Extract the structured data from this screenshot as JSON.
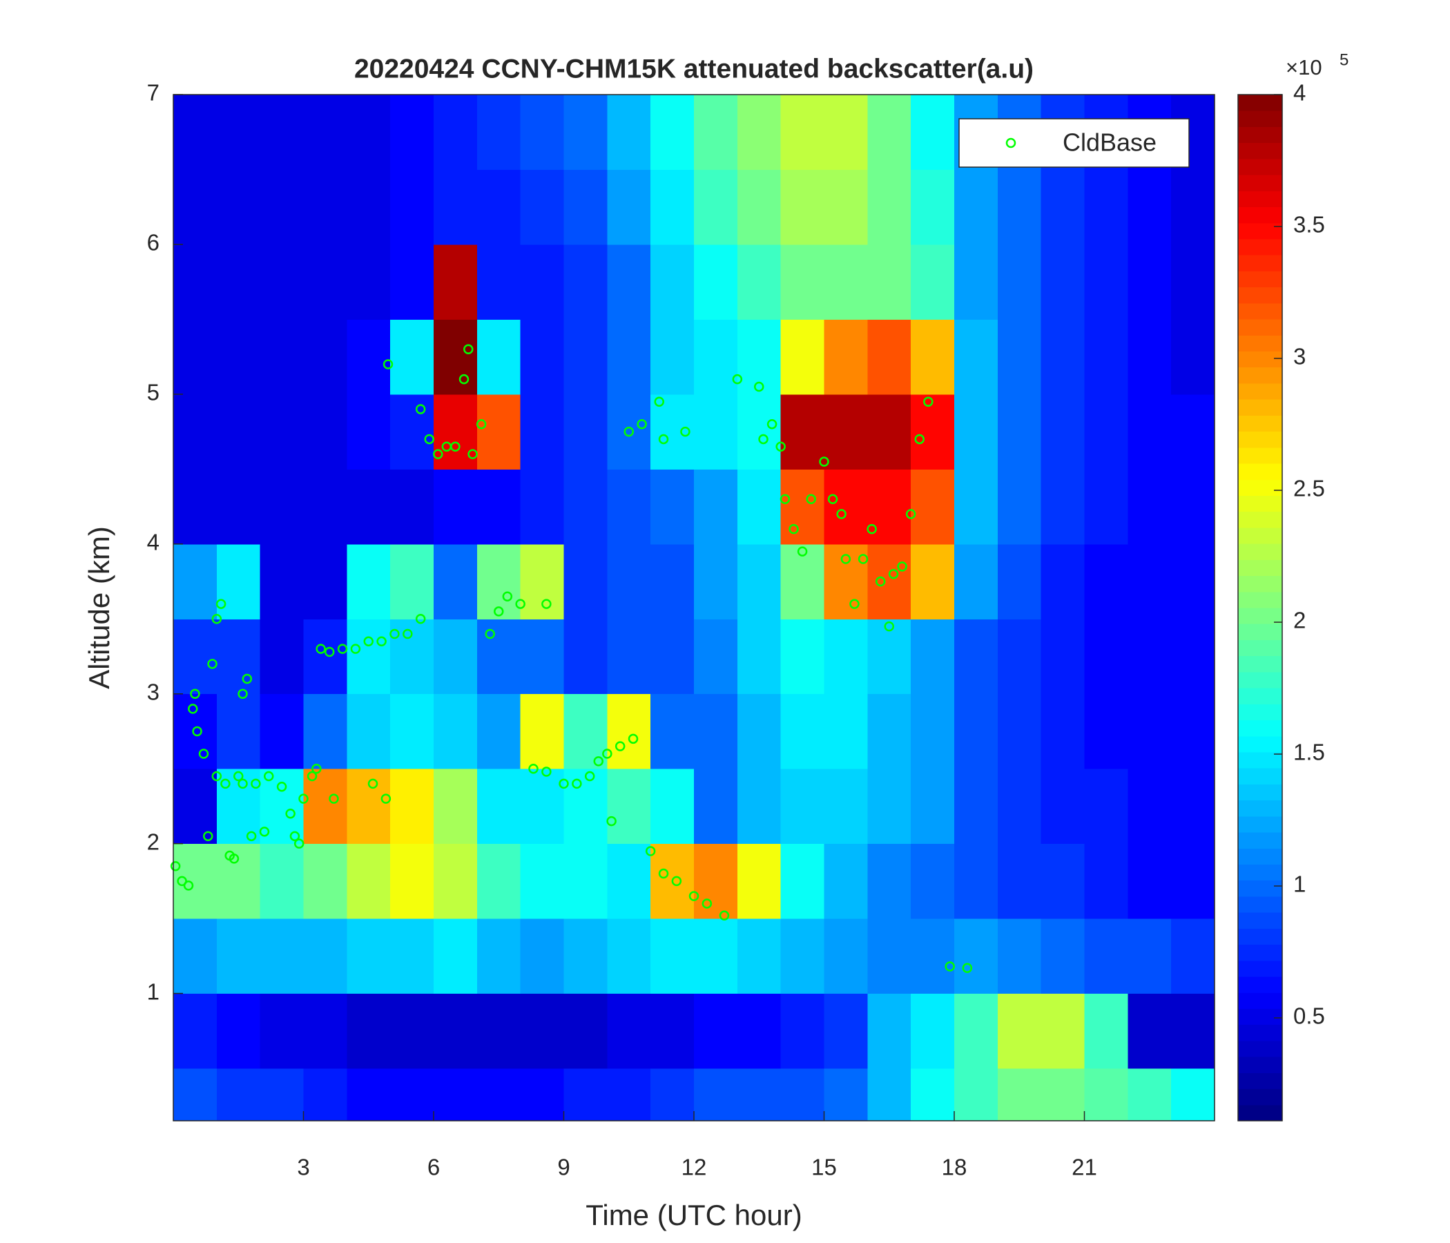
{
  "chart_data": {
    "type": "heatmap",
    "title": "20220424 CCNY-CHM15K attenuated backscatter(a.u)",
    "x_label": "Time (UTC hour)",
    "y_label": "Altitude (km)",
    "colormap": "jet",
    "colorbar_multiplier": "×10",
    "colorbar_exponent": 5,
    "xlim": [
      0,
      24
    ],
    "xticks": [
      3,
      6,
      9,
      12,
      15,
      18,
      21
    ],
    "ylim": [
      0.15,
      7
    ],
    "yticks": [
      1,
      2,
      3,
      4,
      5,
      6,
      7
    ],
    "clim": [
      0.11,
      4
    ],
    "cticks": [
      0.5,
      1,
      1.5,
      2,
      2.5,
      3,
      3.5,
      4
    ],
    "legend": "northeast",
    "x": [
      0,
      1,
      2,
      3,
      4,
      5,
      6,
      7,
      8,
      9,
      10,
      11,
      12,
      13,
      14,
      15,
      16,
      17,
      18,
      19,
      20,
      21,
      22,
      23,
      24
    ],
    "y": [
      0.15,
      0.5,
      1,
      1.5,
      2,
      2.5,
      3,
      3.5,
      4,
      4.5,
      5,
      5.5,
      6,
      6.5,
      7
    ],
    "z": [
      [
        0.9,
        0.8,
        0.8,
        0.7,
        0.6,
        0.6,
        0.6,
        0.6,
        0.6,
        0.7,
        0.7,
        0.8,
        0.9,
        0.9,
        0.9,
        1.0,
        1.3,
        1.6,
        1.8,
        2.0,
        2.0,
        1.9,
        1.8,
        1.6
      ],
      [
        0.7,
        0.6,
        0.5,
        0.5,
        0.4,
        0.4,
        0.4,
        0.4,
        0.4,
        0.4,
        0.5,
        0.5,
        0.6,
        0.6,
        0.7,
        0.8,
        1.3,
        1.5,
        1.8,
        2.3,
        2.3,
        1.8,
        0.4,
        0.4
      ],
      [
        1.2,
        1.3,
        1.3,
        1.3,
        1.4,
        1.4,
        1.5,
        1.3,
        1.2,
        1.3,
        1.4,
        1.5,
        1.5,
        1.4,
        1.3,
        1.2,
        1.1,
        1.1,
        1.2,
        1.1,
        1.0,
        0.9,
        0.9,
        0.8
      ],
      [
        2.0,
        2.0,
        1.8,
        2.0,
        2.3,
        2.5,
        2.3,
        1.8,
        1.6,
        1.6,
        1.5,
        2.8,
        3.0,
        2.5,
        1.6,
        1.3,
        1.1,
        1.0,
        0.9,
        0.8,
        0.8,
        0.7,
        0.6,
        0.6
      ],
      [
        0.5,
        1.5,
        1.6,
        3.0,
        2.8,
        2.6,
        2.2,
        1.5,
        1.5,
        1.6,
        1.8,
        1.6,
        1.0,
        1.3,
        1.4,
        1.4,
        1.3,
        1.2,
        0.9,
        0.8,
        0.7,
        0.7,
        0.6,
        0.6
      ],
      [
        0.6,
        0.8,
        0.6,
        1.0,
        1.4,
        1.5,
        1.4,
        1.2,
        2.5,
        1.8,
        2.5,
        1.0,
        1.0,
        1.3,
        1.5,
        1.5,
        1.3,
        1.2,
        0.9,
        0.8,
        0.7,
        0.6,
        0.6,
        0.6
      ],
      [
        0.8,
        0.8,
        0.5,
        0.7,
        1.5,
        1.4,
        1.3,
        1.0,
        1.0,
        0.8,
        0.9,
        0.9,
        1.1,
        1.4,
        1.6,
        1.5,
        1.4,
        1.2,
        0.9,
        0.8,
        0.7,
        0.6,
        0.6,
        0.6
      ],
      [
        1.2,
        1.5,
        0.5,
        0.5,
        1.6,
        1.8,
        1.0,
        2.0,
        2.3,
        0.8,
        0.9,
        0.9,
        1.2,
        1.4,
        2.0,
        3.0,
        3.2,
        2.8,
        1.2,
        0.9,
        0.7,
        0.6,
        0.6,
        0.6
      ],
      [
        0.5,
        0.5,
        0.5,
        0.5,
        0.5,
        0.5,
        0.6,
        0.6,
        0.7,
        0.8,
        0.9,
        1.0,
        1.2,
        1.5,
        3.2,
        3.5,
        3.5,
        3.2,
        1.3,
        1.0,
        0.8,
        0.7,
        0.6,
        0.6
      ],
      [
        0.5,
        0.5,
        0.5,
        0.5,
        0.6,
        0.7,
        3.6,
        3.2,
        0.7,
        0.8,
        1.0,
        1.5,
        1.5,
        1.6,
        3.8,
        3.8,
        3.8,
        3.5,
        1.3,
        1.0,
        0.8,
        0.7,
        0.6,
        0.6
      ],
      [
        0.5,
        0.5,
        0.5,
        0.5,
        0.6,
        1.5,
        4.0,
        1.5,
        0.7,
        0.8,
        1.0,
        1.4,
        1.5,
        1.6,
        2.5,
        3.0,
        3.2,
        2.8,
        1.3,
        1.0,
        0.8,
        0.7,
        0.6,
        0.5
      ],
      [
        0.5,
        0.5,
        0.5,
        0.5,
        0.5,
        0.6,
        3.8,
        0.7,
        0.7,
        0.8,
        1.0,
        1.4,
        1.6,
        1.8,
        2.0,
        2.0,
        2.0,
        1.8,
        1.2,
        1.0,
        0.8,
        0.7,
        0.6,
        0.5
      ],
      [
        0.5,
        0.5,
        0.5,
        0.5,
        0.5,
        0.6,
        0.7,
        0.7,
        0.8,
        0.9,
        1.2,
        1.5,
        1.8,
        2.0,
        2.2,
        2.2,
        2.0,
        1.7,
        1.2,
        1.0,
        0.8,
        0.7,
        0.6,
        0.5
      ],
      [
        0.5,
        0.5,
        0.5,
        0.5,
        0.5,
        0.6,
        0.7,
        0.8,
        0.9,
        1.0,
        1.3,
        1.6,
        1.9,
        2.1,
        2.3,
        2.3,
        2.0,
        1.6,
        1.2,
        1.0,
        0.8,
        0.7,
        0.6,
        0.5
      ]
    ],
    "series": [
      {
        "name": "CldBase",
        "type": "scatter",
        "color": "#00ff00",
        "x": [
          0.05,
          0.2,
          0.35,
          0.45,
          0.5,
          0.55,
          0.7,
          0.8,
          0.9,
          1.0,
          1.0,
          1.1,
          1.2,
          1.3,
          1.4,
          1.5,
          1.6,
          1.6,
          1.7,
          1.8,
          1.9,
          2.1,
          2.2,
          2.5,
          2.7,
          2.8,
          2.9,
          3.0,
          3.2,
          3.3,
          3.4,
          3.6,
          3.7,
          3.9,
          4.2,
          4.5,
          4.6,
          4.8,
          4.9,
          4.95,
          5.1,
          5.4,
          5.7,
          5.7,
          5.9,
          6.1,
          6.3,
          6.5,
          6.7,
          6.8,
          6.9,
          7.1,
          7.3,
          7.5,
          7.7,
          8.0,
          8.3,
          8.6,
          8.6,
          9.0,
          9.3,
          9.6,
          9.8,
          10.0,
          10.1,
          10.3,
          10.5,
          10.6,
          10.8,
          11.0,
          11.2,
          11.3,
          11.3,
          11.6,
          11.8,
          12.0,
          12.3,
          12.7,
          13.0,
          13.5,
          13.6,
          13.8,
          14.0,
          14.1,
          14.3,
          14.5,
          14.7,
          15.0,
          15.2,
          15.4,
          15.5,
          15.7,
          15.9,
          16.1,
          16.3,
          16.5,
          16.6,
          16.8,
          17.0,
          17.2,
          17.4,
          17.9,
          18.3
        ],
        "values": [
          1.85,
          1.75,
          1.72,
          2.9,
          3.0,
          2.75,
          2.6,
          2.05,
          3.2,
          2.45,
          3.5,
          3.6,
          2.4,
          1.92,
          1.9,
          2.45,
          2.4,
          3.0,
          3.1,
          2.05,
          2.4,
          2.08,
          2.45,
          2.38,
          2.2,
          2.05,
          2.0,
          2.3,
          2.45,
          2.5,
          3.3,
          3.28,
          2.3,
          3.3,
          3.3,
          3.35,
          2.4,
          3.35,
          2.3,
          5.2,
          3.4,
          3.4,
          3.5,
          4.9,
          4.7,
          4.6,
          4.65,
          4.65,
          5.1,
          5.3,
          4.6,
          4.8,
          3.4,
          3.55,
          3.65,
          3.6,
          2.5,
          2.48,
          3.6,
          2.4,
          2.4,
          2.45,
          2.55,
          2.6,
          2.15,
          2.65,
          4.75,
          2.7,
          4.8,
          1.95,
          4.95,
          4.7,
          1.8,
          1.75,
          4.75,
          1.65,
          1.6,
          1.52,
          5.1,
          5.05,
          4.7,
          4.8,
          4.65,
          4.3,
          4.1,
          3.95,
          4.3,
          4.55,
          4.3,
          4.2,
          3.9,
          3.6,
          3.9,
          4.1,
          3.75,
          3.45,
          3.8,
          3.85,
          4.2,
          4.7,
          4.95,
          1.18,
          1.17
        ]
      }
    ]
  }
}
